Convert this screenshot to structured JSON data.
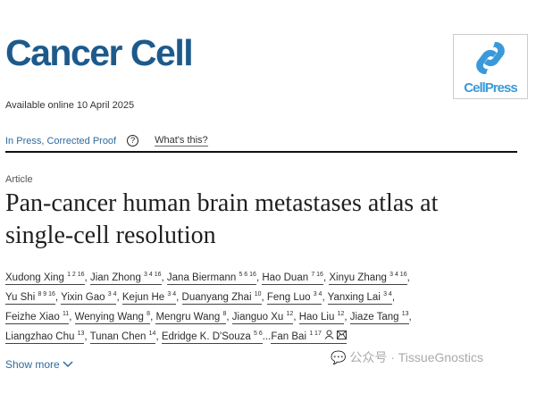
{
  "journal": {
    "title": "Cancer Cell",
    "publisher_logo": "CellPress"
  },
  "available": "Available online 10 April 2025",
  "status": {
    "label": "In Press, Corrected Proof",
    "help_icon": "question-circle-icon",
    "help_link": "What's this?"
  },
  "article_type": "Article",
  "title_lines": [
    "Pan-cancer human brain metastases atlas at",
    "single-cell resolution"
  ],
  "author_rows": [
    [
      {
        "name": "Xudong Xing",
        "sup": "1 2 16"
      },
      {
        "name": "Jian Zhong",
        "sup": "3 4 16"
      },
      {
        "name": "Jana Biermann",
        "sup": "5 6 16"
      },
      {
        "name": "Hao Duan",
        "sup": "7 16"
      },
      {
        "name": "Xinyu Zhang",
        "sup": "3 4 16"
      }
    ],
    [
      {
        "name": "Yu Shi",
        "sup": "8 9 16"
      },
      {
        "name": "Yixin Gao",
        "sup": "3 4"
      },
      {
        "name": "Kejun He",
        "sup": "3 4"
      },
      {
        "name": "Duanyang Zhai",
        "sup": "10"
      },
      {
        "name": "Feng Luo",
        "sup": "3 4"
      },
      {
        "name": "Yanxing Lai",
        "sup": "3 4"
      }
    ],
    [
      {
        "name": "Feizhe Xiao",
        "sup": "11"
      },
      {
        "name": "Wenying Wang",
        "sup": "8"
      },
      {
        "name": "Mengru Wang",
        "sup": "8"
      },
      {
        "name": "Jianguo Xu",
        "sup": "12"
      },
      {
        "name": "Hao Liu",
        "sup": "12"
      },
      {
        "name": "Jiaze Tang",
        "sup": "13"
      }
    ],
    [
      {
        "name": "Liangzhao Chu",
        "sup": "13"
      },
      {
        "name": "Tunan Chen",
        "sup": "14"
      },
      {
        "name": "Edridge K. D'Souza",
        "sup": "5 6"
      },
      {
        "name": "Fan Bai",
        "sup": "1 17"
      }
    ]
  ],
  "ellipsis": "...",
  "show_more": "Show more",
  "watermark": "公众号 · TissueGnostics"
}
